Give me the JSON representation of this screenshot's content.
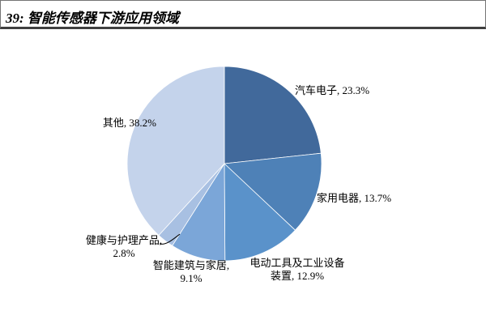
{
  "header": {
    "title": "39: 智能传感器下游应用领域"
  },
  "chart_data": {
    "type": "pie",
    "title": "39: 智能传感器下游应用领域",
    "legend_position": "none",
    "start_angle": "12-o'clock",
    "direction": "clockwise",
    "segments": [
      {
        "key": "automotive-electronics",
        "label": "汽车电子",
        "value": 23.3,
        "color": "#41699B"
      },
      {
        "key": "home-appliances",
        "label": "家用电器",
        "value": 13.7,
        "color": "#4E81B7"
      },
      {
        "key": "power-tools-industrial-equip",
        "label": "电动工具及工业设备装置",
        "value": 12.9,
        "color": "#5A92CA"
      },
      {
        "key": "smart-building-home",
        "label": "智能建筑与家居",
        "value": 9.1,
        "color": "#7BA6D8"
      },
      {
        "key": "health-care-products",
        "label": "健康与护理产品",
        "value": 2.8,
        "color": "#A8C0E2"
      },
      {
        "key": "other",
        "label": "其他",
        "value": 38.2,
        "color": "#C4D3EB"
      }
    ],
    "data_labels": [
      {
        "line1": "汽车电子, 23.3%",
        "line2": ""
      },
      {
        "line1": "家用电器, 13.7%",
        "line2": ""
      },
      {
        "line1": "电动工具及工业设备",
        "line2": "装置, 12.9%"
      },
      {
        "line1": "智能建筑与家居,",
        "line2": "9.1%"
      },
      {
        "line1": "健康与护理产品,",
        "line2": "2.8%"
      },
      {
        "line1": "其他, 38.2%",
        "line2": ""
      }
    ]
  }
}
